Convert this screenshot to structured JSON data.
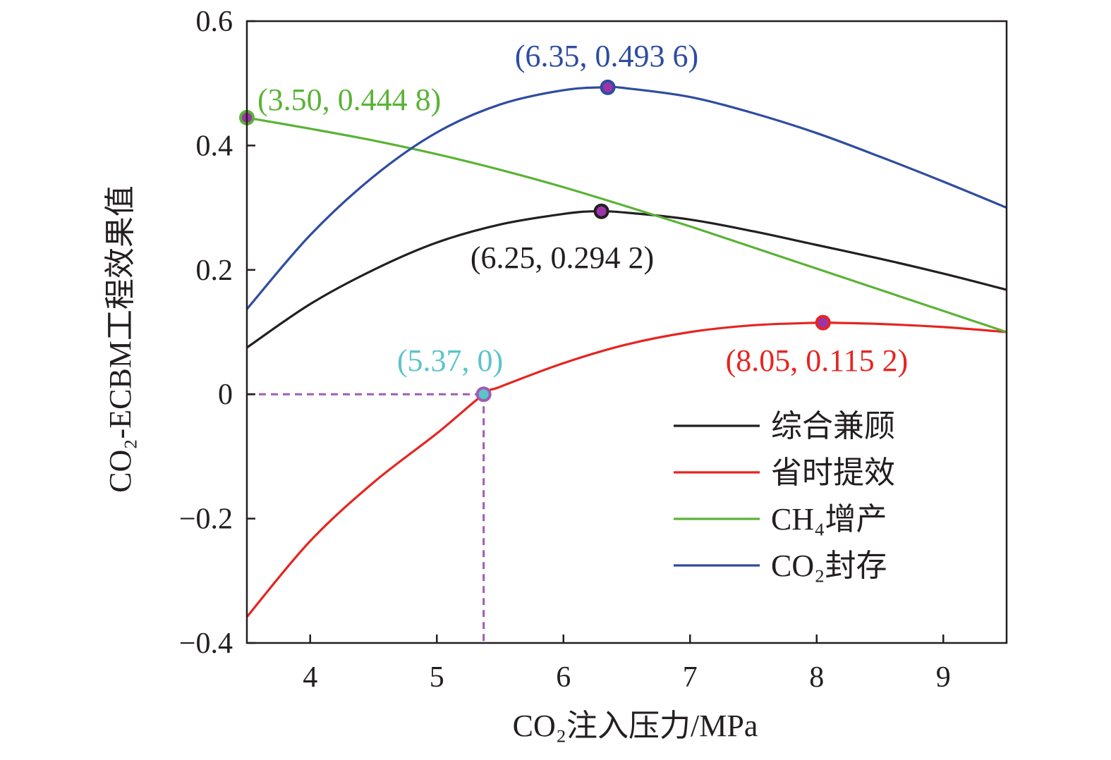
{
  "chart_data": {
    "type": "line",
    "xlabel": "CO₂注入压力/MPa",
    "ylabel": "CO₂-ECBM工程效果值",
    "xlim": [
      3.5,
      9.5
    ],
    "ylim": [
      -0.4,
      0.6
    ],
    "xticks": [
      4,
      5,
      6,
      7,
      8,
      9
    ],
    "yticks": [
      {
        "value": -0.4,
        "label": "−0.4"
      },
      {
        "value": -0.2,
        "label": "−0.2"
      },
      {
        "value": 0,
        "label": "0"
      },
      {
        "value": 0.2,
        "label": "0.2"
      },
      {
        "value": 0.4,
        "label": "0.4"
      },
      {
        "value": 0.6,
        "label": "0.6"
      }
    ],
    "grid": false,
    "legend_position": "bottom-right",
    "series": [
      {
        "name": "综合兼顾",
        "color": "#231f20",
        "x": [
          3.5,
          4.0,
          4.5,
          5.0,
          5.5,
          6.0,
          6.25,
          6.5,
          7.0,
          7.5,
          8.0,
          8.5,
          9.0,
          9.5
        ],
        "y": [
          0.075,
          0.145,
          0.2,
          0.244,
          0.273,
          0.29,
          0.2942,
          0.292,
          0.281,
          0.262,
          0.24,
          0.218,
          0.194,
          0.168
        ]
      },
      {
        "name": "省时提效",
        "color": "#e52521",
        "x": [
          3.5,
          4.0,
          4.5,
          5.0,
          5.37,
          5.5,
          6.0,
          6.5,
          7.0,
          7.5,
          8.0,
          8.05,
          8.5,
          9.0,
          9.5
        ],
        "y": [
          -0.358,
          -0.236,
          -0.142,
          -0.063,
          0.0,
          0.012,
          0.05,
          0.08,
          0.1,
          0.111,
          0.115,
          0.1152,
          0.113,
          0.108,
          0.1
        ]
      },
      {
        "name": "CH₄增产",
        "color": "#5ab336",
        "x": [
          3.5,
          4.0,
          4.5,
          5.0,
          5.5,
          6.0,
          6.5,
          7.0,
          7.5,
          8.0,
          8.5,
          9.0,
          9.5
        ],
        "y": [
          0.4448,
          0.427,
          0.408,
          0.386,
          0.361,
          0.333,
          0.302,
          0.27,
          0.236,
          0.202,
          0.168,
          0.134,
          0.1
        ]
      },
      {
        "name": "CO₂封存",
        "color": "#2e4ca0",
        "x": [
          3.5,
          4.0,
          4.5,
          5.0,
          5.5,
          6.0,
          6.35,
          6.5,
          7.0,
          7.5,
          8.0,
          8.5,
          9.0,
          9.5
        ],
        "y": [
          0.137,
          0.256,
          0.35,
          0.421,
          0.466,
          0.489,
          0.4936,
          0.492,
          0.478,
          0.452,
          0.42,
          0.382,
          0.342,
          0.3
        ]
      }
    ],
    "annotations": [
      {
        "text": "(3.50, 0.444 8)",
        "x": 3.5,
        "y": 0.4448,
        "color": "#5ab336",
        "marker_color": "#5ab336"
      },
      {
        "text": "(6.35, 0.493 6)",
        "x": 6.35,
        "y": 0.4936,
        "color": "#2e4ca0",
        "marker_color": "#2e4ca0"
      },
      {
        "text": "(6.25, 0.294 2)",
        "x": 6.3,
        "y": 0.2942,
        "color": "#231f20",
        "marker_color": "#231f20"
      },
      {
        "text": "(5.37, 0)",
        "x": 5.37,
        "y": 0.0,
        "color": "#5bc4c9",
        "marker_color": "#a05bb5"
      },
      {
        "text": "(8.05, 0.115 2)",
        "x": 8.05,
        "y": 0.1152,
        "color": "#e52521",
        "marker_color": "#e52521"
      }
    ],
    "guide_color": "#a05bb5",
    "marker_fill": "#9b34a8"
  }
}
